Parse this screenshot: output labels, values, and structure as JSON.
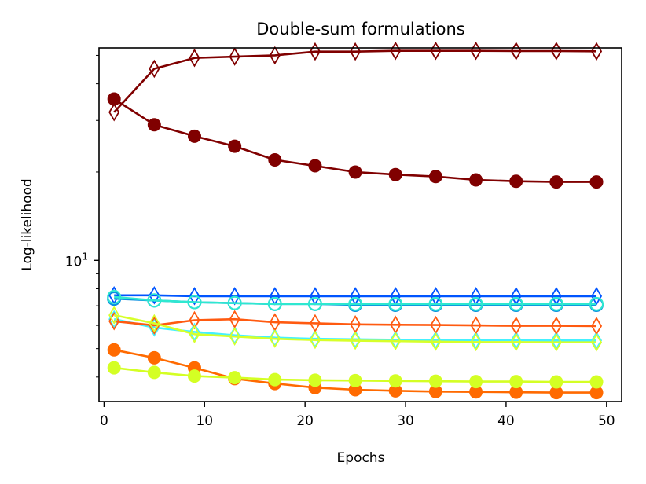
{
  "chart_data": {
    "type": "line",
    "title": "Double-sum formulations",
    "xlabel": "Epochs",
    "ylabel": "Log-likelihood",
    "yscale": "log",
    "xlim": [
      -0.5,
      51.5
    ],
    "ylim": [
      3.3,
      53
    ],
    "x_ticks": [
      0,
      10,
      20,
      30,
      40,
      50
    ],
    "x_tick_labels": [
      "0",
      "10",
      "20",
      "30",
      "40",
      "50"
    ],
    "y_major_tick": {
      "value": 10,
      "base": "10",
      "exp": "1"
    },
    "y_minor_ticks": [
      4,
      5,
      6,
      7,
      8,
      9,
      20,
      30,
      40,
      50
    ],
    "x": [
      1,
      5,
      9,
      13,
      17,
      21,
      25,
      29,
      33,
      37,
      41,
      45,
      49
    ],
    "series": [
      {
        "name": "dark-red diamonds",
        "color": "#800000",
        "marker": "diamond",
        "filled": false,
        "values": [
          32,
          45,
          49,
          49.5,
          50,
          51.5,
          51.5,
          51.8,
          51.8,
          51.8,
          51.7,
          51.7,
          51.6
        ]
      },
      {
        "name": "dark-red circles",
        "color": "#800000",
        "marker": "circle",
        "filled": true,
        "values": [
          35.5,
          29,
          26.5,
          24.5,
          22,
          21,
          20,
          19.6,
          19.3,
          18.8,
          18.6,
          18.5,
          18.5
        ]
      },
      {
        "name": "blue diamonds",
        "color": "#0055ff",
        "marker": "diamond",
        "filled": false,
        "values": [
          7.6,
          7.6,
          7.55,
          7.55,
          7.55,
          7.55,
          7.55,
          7.55,
          7.55,
          7.55,
          7.55,
          7.55,
          7.55
        ]
      },
      {
        "name": "blue circles",
        "color": "#0a8fe0",
        "marker": "circle",
        "filled": false,
        "values": [
          7.4,
          7.3,
          7.2,
          7.15,
          7.1,
          7.1,
          7.05,
          7.05,
          7.05,
          7.05,
          7.05,
          7.05,
          7.05
        ]
      },
      {
        "name": "cyan circles",
        "color": "#2ee8d0",
        "marker": "circle",
        "filled": false,
        "values": [
          7.5,
          7.3,
          7.2,
          7.15,
          7.1,
          7.1,
          7.1,
          7.1,
          7.1,
          7.1,
          7.1,
          7.1,
          7.1
        ]
      },
      {
        "name": "cyan diamonds",
        "color": "#45f0ff",
        "marker": "diamond",
        "filled": false,
        "values": [
          6.3,
          5.9,
          5.7,
          5.55,
          5.45,
          5.4,
          5.38,
          5.36,
          5.35,
          5.34,
          5.34,
          5.33,
          5.33
        ]
      },
      {
        "name": "orange diamonds",
        "color": "#ff5a10",
        "marker": "diamond",
        "filled": false,
        "values": [
          6.2,
          6.0,
          6.25,
          6.3,
          6.15,
          6.1,
          6.05,
          6.03,
          6.02,
          6.0,
          5.98,
          5.98,
          5.97
        ]
      },
      {
        "name": "yellow-green diamonds",
        "color": "#d7ff2a",
        "marker": "diamond",
        "filled": false,
        "values": [
          6.5,
          6.1,
          5.6,
          5.5,
          5.4,
          5.35,
          5.32,
          5.3,
          5.28,
          5.26,
          5.26,
          5.25,
          5.25
        ]
      },
      {
        "name": "orange circles",
        "color": "#ff6a00",
        "marker": "circle",
        "filled": true,
        "values": [
          4.95,
          4.65,
          4.3,
          3.95,
          3.8,
          3.68,
          3.62,
          3.59,
          3.57,
          3.56,
          3.55,
          3.54,
          3.54
        ]
      },
      {
        "name": "yellow-green circles",
        "color": "#d4ff24",
        "marker": "circle",
        "filled": true,
        "values": [
          4.3,
          4.15,
          4.03,
          3.98,
          3.92,
          3.9,
          3.89,
          3.88,
          3.87,
          3.86,
          3.86,
          3.85,
          3.85
        ]
      }
    ]
  }
}
